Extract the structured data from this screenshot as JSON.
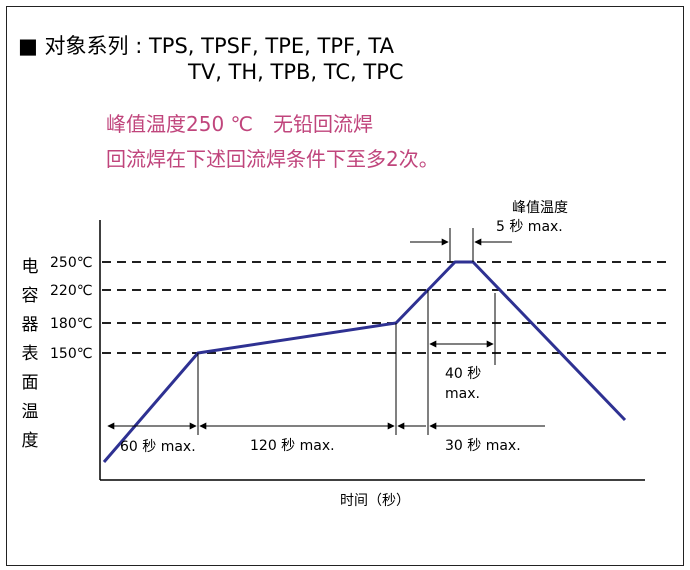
{
  "header": {
    "bullet": "■",
    "line1": "对象系列 : TPS, TPSF, TPE, TPF, TA",
    "line2": "TV, TH, TPB, TC, TPC"
  },
  "note": {
    "line1": "峰值温度250 ℃　无铅回流焊",
    "line2": "回流焊在下述回流焊条件下至多2次。"
  },
  "y_axis": {
    "title_chars": [
      "电",
      "容",
      "器",
      "表",
      "面",
      "温",
      "度"
    ],
    "ticks": [
      "250℃",
      "220℃",
      "180℃",
      "150℃"
    ]
  },
  "x_axis": {
    "title": "时间（秒）"
  },
  "annotations": {
    "peak_hold_line1": "峰值温度",
    "peak_hold_line2": "5 秒 max.",
    "preheat_ramp": "60 秒 max.",
    "soak": "120 秒 max.",
    "above_220_line1": "40 秒",
    "above_220_line2": "max.",
    "above_180": "30 秒 max."
  },
  "colors": {
    "profile": "#2e3192",
    "note_text": "#c0457c",
    "lines": "#000000"
  }
}
